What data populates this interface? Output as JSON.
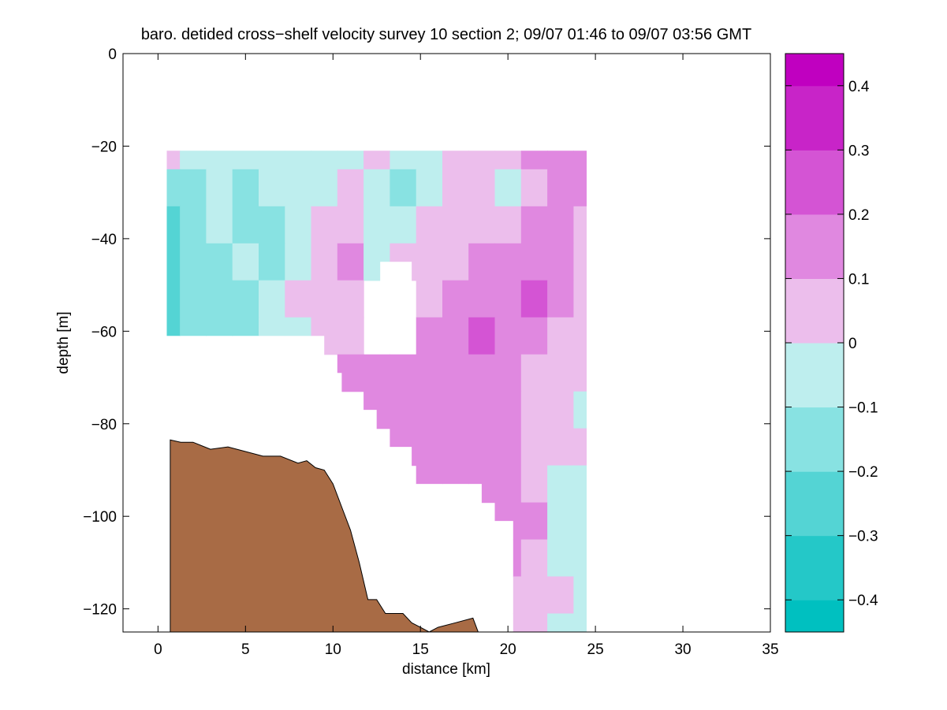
{
  "chart_data": {
    "type": "heatmap",
    "title": "baro. detided cross−shelf velocity survey 10 section 2; 09/07 01:46 to 09/07 03:56 GMT",
    "xlabel": "distance [km]",
    "ylabel": "depth [m]",
    "xlim": [
      -2,
      35
    ],
    "ylim": [
      -125,
      0
    ],
    "xticks": [
      0,
      5,
      10,
      15,
      20,
      25,
      30,
      35
    ],
    "xtick_labels": [
      "0",
      "5",
      "10",
      "15",
      "20",
      "25",
      "30",
      "35"
    ],
    "yticks": [
      0,
      -20,
      -40,
      -60,
      -80,
      -100,
      -120
    ],
    "ytick_labels": [
      "0",
      "−20",
      "−40",
      "−60",
      "−80",
      "−100",
      "−120"
    ],
    "grid": false,
    "colorbar": {
      "limits": [
        -0.45,
        0.45
      ],
      "levels": [
        -0.45,
        -0.4,
        -0.3,
        -0.2,
        -0.1,
        0,
        0.1,
        0.2,
        0.3,
        0.4,
        0.45
      ],
      "colors": [
        "#00c0c0",
        "#24c8c8",
        "#54d4d4",
        "#88e2e2",
        "#beeeee",
        "#ecbeec",
        "#e088e0",
        "#d454d4",
        "#c824c8",
        "#c000c0"
      ],
      "ticks": [
        -0.4,
        -0.3,
        -0.2,
        -0.1,
        0,
        0.1,
        0.2,
        0.3,
        0.4
      ],
      "tick_labels": [
        "−0.4",
        "−0.3",
        "−0.2",
        "−0.1",
        "0",
        "0.1",
        "0.2",
        "0.3",
        "0.4"
      ]
    },
    "data_grid": {
      "x_km": [
        0.5,
        2,
        3.5,
        5,
        6.5,
        8,
        9.5,
        11,
        12.5,
        14,
        15.5,
        17,
        18.5,
        20,
        21.5,
        23,
        24.5
      ],
      "depth_m": [
        -21,
        -29,
        -37,
        -45,
        -53,
        -61,
        -69,
        -77,
        -85,
        -93,
        -101,
        -109,
        -117,
        -125
      ],
      "velocity_m_s": [
        [
          0.05,
          -0.05,
          -0.05,
          -0.05,
          -0.05,
          -0.05,
          -0.05,
          -0.05,
          0.05,
          -0.05,
          -0.05,
          0.05,
          0.05,
          0.05,
          0.15,
          0.15,
          0.15
        ],
        [
          -0.15,
          -0.15,
          -0.05,
          -0.15,
          -0.05,
          -0.05,
          -0.05,
          0.05,
          -0.05,
          -0.15,
          -0.05,
          0.05,
          0.05,
          -0.05,
          0.05,
          0.15,
          0.15
        ],
        [
          -0.25,
          -0.15,
          -0.05,
          -0.15,
          -0.15,
          -0.05,
          0.05,
          0.05,
          -0.05,
          -0.05,
          0.05,
          0.05,
          0.05,
          0.05,
          0.15,
          0.15,
          0.05
        ],
        [
          -0.25,
          -0.15,
          -0.15,
          -0.05,
          -0.15,
          -0.05,
          0.05,
          0.15,
          -0.05,
          0.05,
          0.05,
          0.05,
          0.15,
          0.15,
          0.15,
          0.15,
          0.05
        ],
        [
          -0.25,
          -0.15,
          -0.15,
          -0.15,
          -0.05,
          0.05,
          0.05,
          0.05,
          null,
          null,
          0.05,
          0.15,
          0.15,
          0.15,
          0.25,
          0.15,
          0.05
        ],
        [
          -0.25,
          -0.15,
          -0.15,
          -0.15,
          -0.05,
          -0.05,
          0.05,
          0.05,
          null,
          null,
          0.15,
          0.15,
          0.25,
          0.15,
          0.15,
          0.05,
          0.05
        ],
        [
          null,
          null,
          null,
          null,
          null,
          null,
          null,
          0.15,
          0.15,
          0.15,
          0.15,
          0.15,
          0.15,
          0.15,
          0.05,
          0.05,
          0.05
        ],
        [
          null,
          null,
          null,
          null,
          null,
          null,
          null,
          null,
          0.15,
          0.15,
          0.15,
          0.15,
          0.15,
          0.15,
          0.05,
          0.05,
          -0.05
        ],
        [
          null,
          null,
          null,
          null,
          null,
          null,
          null,
          null,
          null,
          0.15,
          0.15,
          0.15,
          0.15,
          0.15,
          0.05,
          0.05,
          0.05
        ],
        [
          null,
          null,
          null,
          null,
          null,
          null,
          null,
          null,
          null,
          null,
          0.15,
          0.15,
          0.15,
          0.15,
          0.05,
          -0.05,
          -0.05
        ],
        [
          null,
          null,
          null,
          null,
          null,
          null,
          null,
          null,
          null,
          null,
          null,
          null,
          null,
          0.15,
          0.15,
          -0.05,
          -0.05
        ],
        [
          null,
          null,
          null,
          null,
          null,
          null,
          null,
          null,
          null,
          null,
          null,
          null,
          null,
          0.15,
          0.05,
          -0.05,
          -0.05
        ],
        [
          null,
          null,
          null,
          null,
          null,
          null,
          null,
          null,
          null,
          null,
          null,
          null,
          null,
          0.05,
          0.05,
          0.05,
          -0.05
        ],
        [
          null,
          null,
          null,
          null,
          null,
          null,
          null,
          null,
          null,
          null,
          null,
          null,
          null,
          0.05,
          0.05,
          -0.05,
          -0.05
        ]
      ]
    },
    "data_mask": {
      "x_km": [
        0.5,
        9.5,
        9.5,
        10.5,
        10.5,
        12.5,
        12.5,
        14.5,
        14.5,
        18.5,
        18.5,
        20.3,
        20.3,
        24.5,
        24.5,
        0.5
      ],
      "depth_m": [
        -61,
        -61,
        -69,
        -69,
        -77,
        -77,
        -85,
        -85,
        -93,
        -93,
        -101,
        -101,
        -125,
        -125,
        -21,
        -21
      ]
    },
    "data_gap": {
      "x_km": [
        12.7,
        14.5
      ],
      "depth_m": [
        -45,
        -61
      ]
    },
    "bathymetry": {
      "fill_color": "#a86b45",
      "x_km": [
        0.7,
        1.3,
        2.0,
        3.0,
        4.0,
        5.0,
        6.0,
        7.0,
        8.0,
        8.5,
        9.0,
        9.5,
        10.0,
        10.5,
        11.0,
        11.5,
        12.0,
        12.5,
        13.0,
        13.5,
        14.0,
        14.5,
        15.0,
        15.5,
        16.0,
        17.0,
        18.0,
        18.3
      ],
      "depth_m": [
        -83.5,
        -84,
        -84,
        -85.5,
        -85,
        -86,
        -87,
        -87,
        -88.5,
        -88,
        -89.5,
        -90,
        -93,
        -98,
        -103,
        -110,
        -118,
        -118,
        -121,
        -121,
        -121,
        -123,
        -124,
        -125,
        -124,
        -123,
        -122,
        -125
      ]
    }
  }
}
